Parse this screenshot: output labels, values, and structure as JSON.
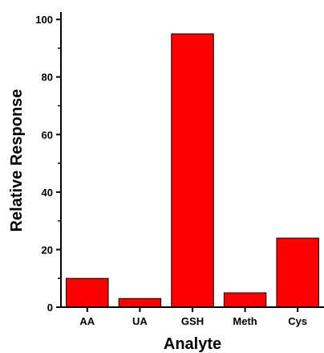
{
  "chart_data": {
    "type": "bar",
    "title": "",
    "xlabel": "Analyte",
    "ylabel": "Relative Response",
    "categories": [
      "AA",
      "UA",
      "GSH",
      "Meth",
      "Cys"
    ],
    "values": [
      10,
      3,
      95,
      5,
      24
    ],
    "ylim": [
      0,
      102
    ],
    "yticks": [
      0,
      20,
      40,
      60,
      80,
      100
    ],
    "bar_color": "#ff0000",
    "bar_edge_color": "#000000",
    "grid": false,
    "legend": "none"
  }
}
